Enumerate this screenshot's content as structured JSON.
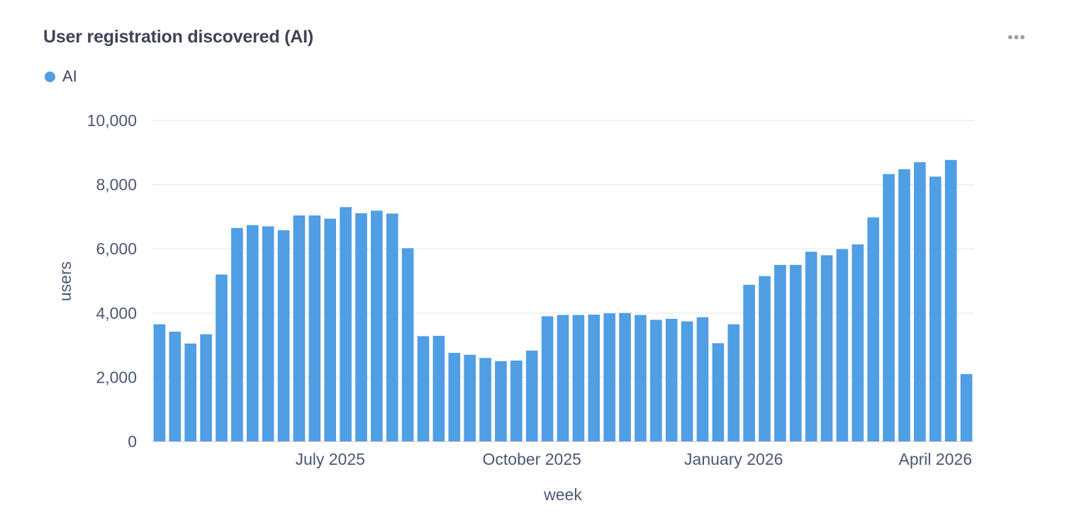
{
  "card": {
    "title": "User registration discovered (AI)",
    "menu_icon": "more-horizontal-icon"
  },
  "legend": {
    "label": "AI",
    "color": "#509ee3"
  },
  "colors": {
    "bar": "#509ee3",
    "grid": "#e6e9ee",
    "axis_text": "#4c5773",
    "title": "#3f4454"
  },
  "chart_data": {
    "type": "bar",
    "title": "User registration discovered (AI)",
    "xlabel": "week",
    "ylabel": "users",
    "ylim": [
      0,
      10000
    ],
    "yticks": [
      0,
      2000,
      4000,
      6000,
      8000,
      10000
    ],
    "ytick_labels": [
      "0",
      "2,000",
      "4,000",
      "6,000",
      "8,000",
      "10,000"
    ],
    "xtick_labels": [
      "July 2025",
      "October 2025",
      "January 2026",
      "April 2026"
    ],
    "grid": true,
    "legend_position": "top-left",
    "series": [
      {
        "name": "AI",
        "values": [
          3650,
          3420,
          3050,
          3340,
          5200,
          6650,
          6740,
          6700,
          6580,
          7040,
          7040,
          6940,
          7300,
          7110,
          7190,
          7100,
          6020,
          3280,
          3290,
          2760,
          2700,
          2600,
          2500,
          2520,
          2830,
          3900,
          3940,
          3940,
          3950,
          3990,
          4000,
          3940,
          3790,
          3820,
          3740,
          3870,
          3060,
          3650,
          4880,
          5150,
          5500,
          5500,
          5910,
          5800,
          5990,
          6140,
          6980,
          8330,
          8480,
          8700,
          8250,
          8770,
          2100
        ]
      }
    ]
  }
}
